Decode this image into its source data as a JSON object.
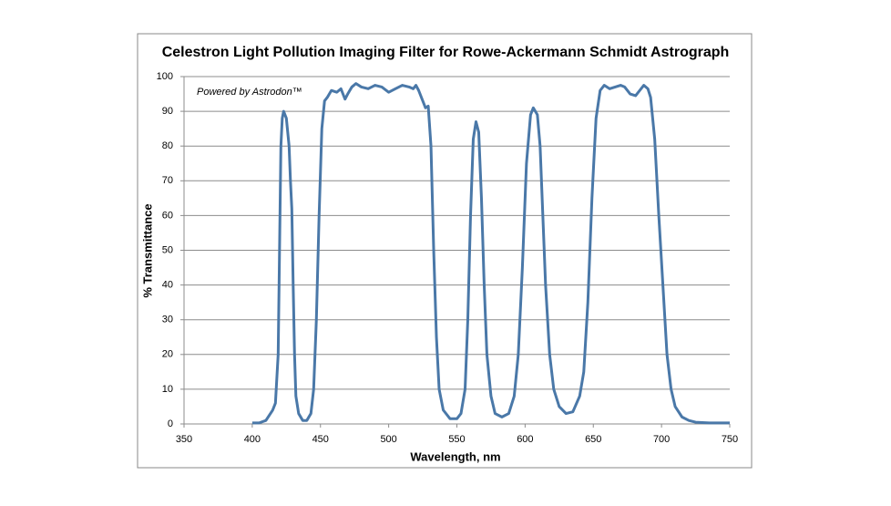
{
  "chart_data": {
    "type": "line",
    "title": "Celestron Light Pollution Imaging Filter for Rowe-Ackermann Schmidt Astrograph",
    "annotation": "Powered by Astrodon™",
    "x_label": "Wavelength, nm",
    "y_label": "% Transmittance",
    "xlim": [
      350,
      750
    ],
    "xticks": [
      350,
      400,
      450,
      500,
      550,
      600,
      650,
      700,
      750
    ],
    "ylim": [
      0,
      100
    ],
    "yticks": [
      0,
      10,
      20,
      30,
      40,
      50,
      60,
      70,
      80,
      90,
      100
    ],
    "grid": true,
    "x": [
      400,
      405,
      410,
      415,
      417,
      419,
      420,
      421,
      422,
      423,
      425,
      427,
      428,
      429,
      430,
      431,
      432,
      434,
      437,
      440,
      443,
      445,
      447,
      449,
      451,
      453,
      455,
      458,
      462,
      465,
      468,
      470,
      473,
      476,
      480,
      485,
      490,
      495,
      500,
      505,
      510,
      515,
      518,
      520,
      522,
      525,
      527,
      529,
      531,
      533,
      535,
      537,
      540,
      545,
      550,
      553,
      556,
      558,
      560,
      562,
      564,
      566,
      568,
      570,
      572,
      575,
      578,
      583,
      588,
      592,
      595,
      598,
      601,
      604,
      606,
      609,
      611,
      613,
      615,
      618,
      621,
      625,
      630,
      635,
      640,
      643,
      646,
      649,
      652,
      655,
      658,
      662,
      666,
      670,
      673,
      677,
      681,
      684,
      687,
      690,
      692,
      695,
      698,
      701,
      704,
      707,
      710,
      715,
      720,
      725,
      735,
      750
    ],
    "series": [
      {
        "name": "Transmittance",
        "color": "#4a78a8",
        "values": [
          0.3,
          0.3,
          1,
          4,
          6,
          20,
          50,
          80,
          88,
          90,
          88,
          80,
          70,
          62,
          40,
          20,
          8,
          3,
          1,
          1,
          3,
          10,
          30,
          60,
          85,
          93,
          94,
          96,
          95.5,
          96.5,
          93.5,
          95,
          97,
          98,
          97,
          96.5,
          97.5,
          97,
          95.5,
          96.5,
          97.5,
          97,
          96.5,
          97.5,
          96,
          93,
          91,
          91.5,
          80,
          50,
          25,
          10,
          4,
          1.5,
          1.5,
          3,
          10,
          30,
          60,
          82,
          87,
          84,
          65,
          40,
          20,
          8,
          3,
          2,
          3,
          8,
          20,
          45,
          75,
          89,
          91,
          89,
          80,
          60,
          40,
          20,
          10,
          5,
          3,
          3.5,
          8,
          15,
          35,
          65,
          88,
          96,
          97.5,
          96.5,
          97,
          97.5,
          97,
          95,
          94.5,
          96,
          97.5,
          96.5,
          94,
          82,
          60,
          40,
          20,
          10,
          5,
          2,
          1,
          0.5,
          0.3,
          0.3
        ]
      }
    ]
  }
}
